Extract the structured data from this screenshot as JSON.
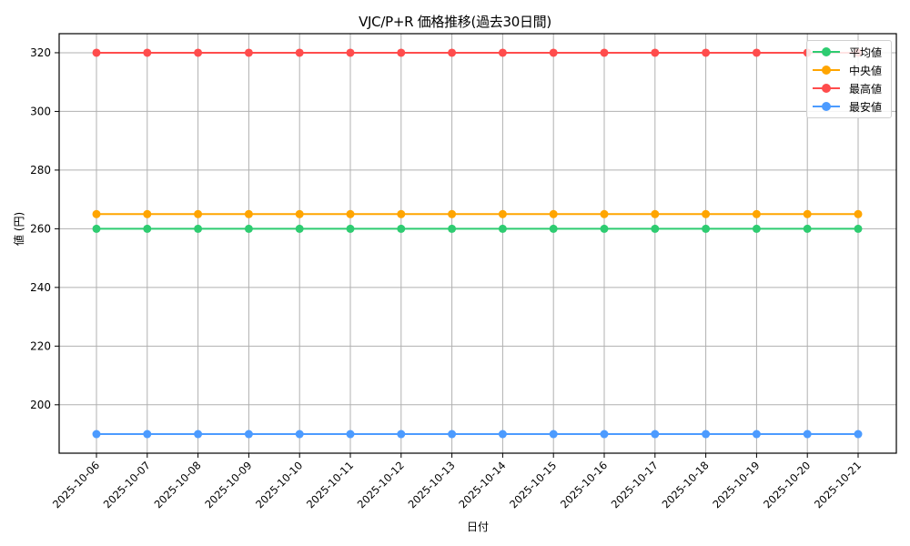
{
  "chart_data": {
    "type": "line",
    "title": "VJC/P+R 価格推移(過去30日間)",
    "xlabel": "日付",
    "ylabel": "値 (円)",
    "x": [
      "2025-10-06",
      "2025-10-07",
      "2025-10-08",
      "2025-10-09",
      "2025-10-10",
      "2025-10-11",
      "2025-10-12",
      "2025-10-13",
      "2025-10-14",
      "2025-10-15",
      "2025-10-16",
      "2025-10-17",
      "2025-10-18",
      "2025-10-19",
      "2025-10-20",
      "2025-10-21"
    ],
    "series": [
      {
        "name": "平均値",
        "color": "#2ecc71",
        "values": [
          260,
          260,
          260,
          260,
          260,
          260,
          260,
          260,
          260,
          260,
          260,
          260,
          260,
          260,
          260,
          260
        ]
      },
      {
        "name": "中央値",
        "color": "#ffa500",
        "values": [
          265,
          265,
          265,
          265,
          265,
          265,
          265,
          265,
          265,
          265,
          265,
          265,
          265,
          265,
          265,
          265
        ]
      },
      {
        "name": "最高値",
        "color": "#ff4c4c",
        "values": [
          320,
          320,
          320,
          320,
          320,
          320,
          320,
          320,
          320,
          320,
          320,
          320,
          320,
          320,
          320,
          320
        ]
      },
      {
        "name": "最安値",
        "color": "#4c9bff",
        "values": [
          190,
          190,
          190,
          190,
          190,
          190,
          190,
          190,
          190,
          190,
          190,
          190,
          190,
          190,
          190,
          190
        ]
      }
    ],
    "yticks": [
      200,
      220,
      240,
      260,
      280,
      300,
      320
    ],
    "ylim": [
      183.5,
      326.5
    ],
    "grid": true,
    "legend_position": "upper right",
    "x_tick_rotation": 45
  }
}
